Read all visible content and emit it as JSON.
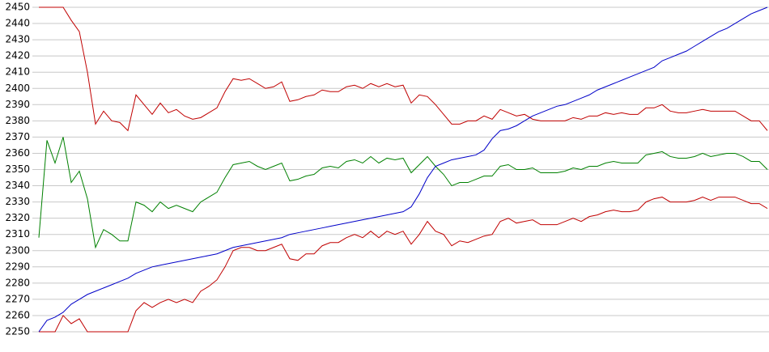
{
  "chart_data": {
    "type": "line",
    "ylim": [
      2250,
      2450
    ],
    "yticks": [
      2250,
      2260,
      2270,
      2280,
      2290,
      2300,
      2310,
      2320,
      2330,
      2340,
      2350,
      2360,
      2370,
      2380,
      2390,
      2400,
      2410,
      2420,
      2430,
      2440,
      2450
    ],
    "grid": true,
    "series": [
      {
        "color": "#c00000",
        "values": [
          2450,
          2450,
          2450,
          2450,
          2442,
          2435,
          2410,
          2378,
          2386,
          2380,
          2379,
          2374,
          2396,
          2390,
          2384,
          2391,
          2385,
          2387,
          2383,
          2381,
          2382,
          2385,
          2388,
          2398,
          2406,
          2405,
          2406,
          2403,
          2400,
          2401,
          2404,
          2392,
          2393,
          2395,
          2396,
          2399,
          2398,
          2398,
          2401,
          2402,
          2400,
          2403,
          2401,
          2403,
          2401,
          2402,
          2391,
          2396,
          2395,
          2390,
          2384,
          2378,
          2378,
          2380,
          2380,
          2383,
          2381,
          2387,
          2385,
          2383,
          2384,
          2381,
          2380,
          2380,
          2380,
          2380,
          2382,
          2381,
          2383,
          2383,
          2385,
          2384,
          2385,
          2384,
          2384,
          2388,
          2388,
          2390,
          2386,
          2385,
          2385,
          2386,
          2387,
          2386,
          2386,
          2386,
          2386,
          2383,
          2380,
          2380,
          2374
        ]
      },
      {
        "color": "#008000",
        "values": [
          2308,
          2368,
          2354,
          2370,
          2342,
          2349,
          2332,
          2302,
          2313,
          2310,
          2306,
          2306,
          2330,
          2328,
          2324,
          2330,
          2326,
          2328,
          2326,
          2324,
          2330,
          2333,
          2336,
          2345,
          2353,
          2354,
          2355,
          2352,
          2350,
          2352,
          2354,
          2343,
          2344,
          2346,
          2347,
          2351,
          2352,
          2351,
          2355,
          2356,
          2354,
          2358,
          2354,
          2357,
          2356,
          2357,
          2348,
          2353,
          2358,
          2352,
          2347,
          2340,
          2342,
          2342,
          2344,
          2346,
          2346,
          2352,
          2353,
          2350,
          2350,
          2351,
          2348,
          2348,
          2348,
          2349,
          2351,
          2350,
          2352,
          2352,
          2354,
          2355,
          2354,
          2354,
          2354,
          2359,
          2360,
          2361,
          2358,
          2357,
          2357,
          2358,
          2360,
          2358,
          2359,
          2360,
          2360,
          2358,
          2355,
          2355,
          2350
        ]
      },
      {
        "color": "#c00000",
        "values": [
          2250,
          2250,
          2250,
          2260,
          2255,
          2258,
          2250,
          2250,
          2250,
          2250,
          2250,
          2250,
          2263,
          2268,
          2265,
          2268,
          2270,
          2268,
          2270,
          2268,
          2275,
          2278,
          2282,
          2290,
          2300,
          2302,
          2302,
          2300,
          2300,
          2302,
          2304,
          2295,
          2294,
          2298,
          2298,
          2303,
          2305,
          2305,
          2308,
          2310,
          2308,
          2312,
          2308,
          2312,
          2310,
          2312,
          2304,
          2310,
          2318,
          2312,
          2310,
          2303,
          2306,
          2305,
          2307,
          2309,
          2310,
          2318,
          2320,
          2317,
          2318,
          2319,
          2316,
          2316,
          2316,
          2318,
          2320,
          2318,
          2321,
          2322,
          2324,
          2325,
          2324,
          2324,
          2325,
          2330,
          2332,
          2333,
          2330,
          2330,
          2330,
          2331,
          2333,
          2331,
          2333,
          2333,
          2333,
          2331,
          2329,
          2329,
          2326
        ]
      },
      {
        "color": "#0000c8",
        "values": [
          2250,
          2257,
          2259,
          2262,
          2267,
          2270,
          2273,
          2275,
          2277,
          2279,
          2281,
          2283,
          2286,
          2288,
          2290,
          2291,
          2292,
          2293,
          2294,
          2295,
          2296,
          2297,
          2298,
          2300,
          2302,
          2303,
          2304,
          2305,
          2306,
          2307,
          2308,
          2310,
          2311,
          2312,
          2313,
          2314,
          2315,
          2316,
          2317,
          2318,
          2319,
          2320,
          2321,
          2322,
          2323,
          2324,
          2327,
          2335,
          2345,
          2352,
          2354,
          2356,
          2357,
          2358,
          2359,
          2362,
          2369,
          2374,
          2375,
          2377,
          2380,
          2383,
          2385,
          2387,
          2389,
          2390,
          2392,
          2394,
          2396,
          2399,
          2401,
          2403,
          2405,
          2407,
          2409,
          2411,
          2413,
          2417,
          2419,
          2421,
          2423,
          2426,
          2429,
          2432,
          2435,
          2437,
          2440,
          2443,
          2446,
          2448,
          2450
        ]
      }
    ]
  }
}
